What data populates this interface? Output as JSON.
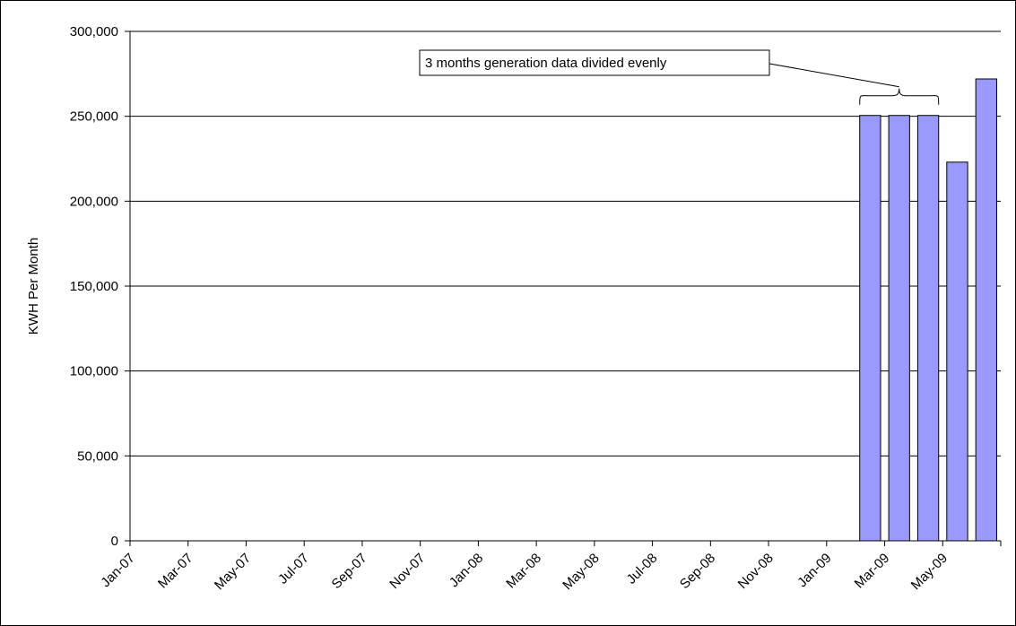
{
  "chart_data": {
    "type": "bar",
    "title": "",
    "xlabel": "",
    "ylabel": "KWH Per Month",
    "ylim": [
      0,
      300000
    ],
    "yticks": [
      "0",
      "50,000",
      "100,000",
      "150,000",
      "200,000",
      "250,000",
      "300,000"
    ],
    "ytick_values": [
      0,
      50000,
      100000,
      150000,
      200000,
      250000,
      300000
    ],
    "x_tick_labels": [
      "Jan-07",
      "Mar-07",
      "May-07",
      "Jul-07",
      "Sep-07",
      "Nov-07",
      "Jan-08",
      "Mar-08",
      "May-08",
      "Jul-08",
      "Sep-08",
      "Nov-08",
      "Jan-09",
      "Mar-09",
      "May-09"
    ],
    "categories": [
      "Jan-07",
      "Feb-07",
      "Mar-07",
      "Apr-07",
      "May-07",
      "Jun-07",
      "Jul-07",
      "Aug-07",
      "Sep-07",
      "Oct-07",
      "Nov-07",
      "Dec-07",
      "Jan-08",
      "Feb-08",
      "Mar-08",
      "Apr-08",
      "May-08",
      "Jun-08",
      "Jul-08",
      "Aug-08",
      "Sep-08",
      "Oct-08",
      "Nov-08",
      "Dec-08",
      "Jan-09",
      "Feb-09",
      "Mar-09",
      "Apr-09",
      "May-09",
      "Jun-09"
    ],
    "values": [
      0,
      0,
      0,
      0,
      0,
      0,
      0,
      0,
      0,
      0,
      0,
      0,
      0,
      0,
      0,
      0,
      0,
      0,
      0,
      0,
      0,
      0,
      0,
      0,
      0,
      250500,
      250500,
      250500,
      223000,
      272000
    ],
    "grid": true,
    "legend": "none",
    "bar_color": "#9999ff",
    "annotation": {
      "text": "3 months generation data divided evenly",
      "spans": [
        "Feb-09",
        "Apr-09"
      ]
    }
  }
}
